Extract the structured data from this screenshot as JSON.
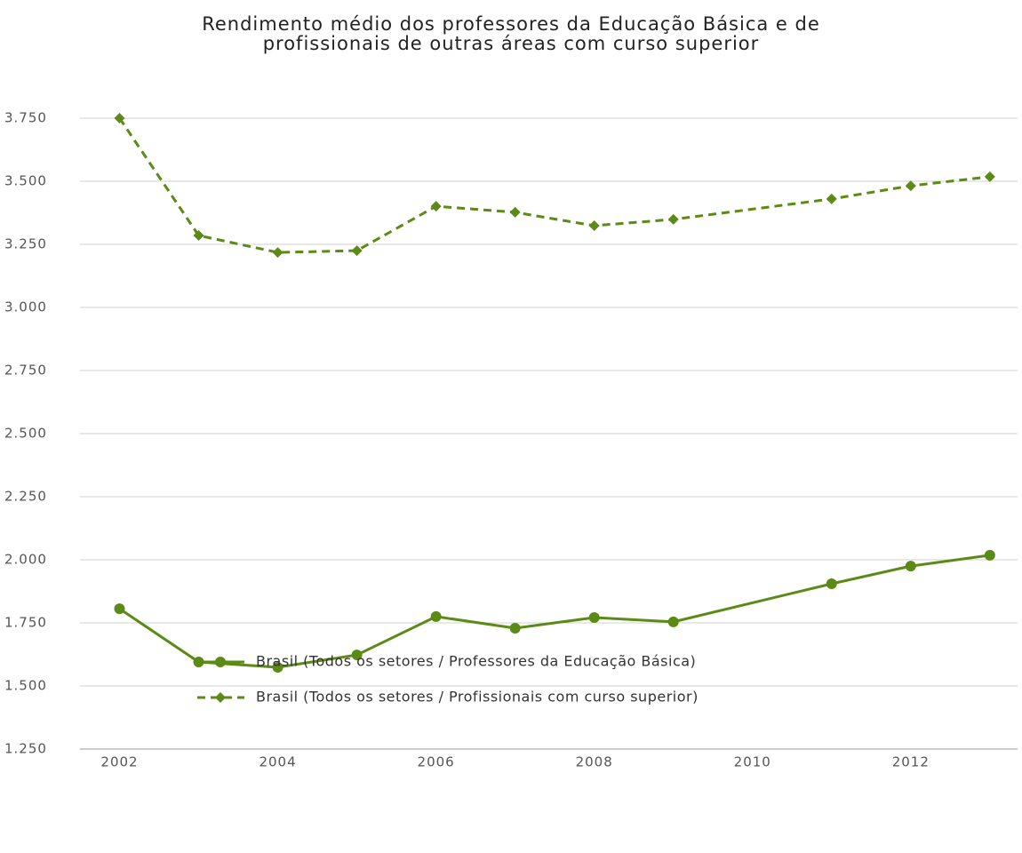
{
  "chart_data": {
    "type": "line",
    "title": [
      "Rendimento médio dos professores da Educação Básica e de",
      "profissionais de outras áreas com curso superior"
    ],
    "x": [
      2002,
      2003,
      2004,
      2005,
      2006,
      2007,
      2008,
      2009,
      2011,
      2012,
      2013
    ],
    "series": [
      {
        "name": "Brasil (Todos os setores / Professores da Educação Básica)",
        "color": "#5b8a16",
        "dash": false,
        "marker": "circle",
        "values": [
          1806,
          1595,
          1574,
          1623,
          1775,
          1729,
          1771,
          1754,
          1905,
          1975,
          2018
        ]
      },
      {
        "name": "Brasil (Todos os setores / Profissionais com curso superior)",
        "color": "#5b8a16",
        "dash": true,
        "marker": "diamond",
        "values": [
          3750,
          3285,
          3218,
          3225,
          3401,
          3377,
          3324,
          3349,
          3430,
          3482,
          3518
        ]
      }
    ],
    "xlim": [
      2001.5,
      2013.35
    ],
    "xticks": [
      2002,
      2004,
      2006,
      2008,
      2010,
      2012
    ],
    "ylim": [
      1250,
      3750
    ],
    "yticks": [
      {
        "value": 1250,
        "label": "1.250"
      },
      {
        "value": 1500,
        "label": "1.500"
      },
      {
        "value": 1750,
        "label": "1.750"
      },
      {
        "value": 2000,
        "label": "2.000"
      },
      {
        "value": 2250,
        "label": "2.250"
      },
      {
        "value": 2500,
        "label": "2.500"
      },
      {
        "value": 2750,
        "label": "2.750"
      },
      {
        "value": 3000,
        "label": "3.000"
      },
      {
        "value": 3250,
        "label": "3.250"
      },
      {
        "value": 3500,
        "label": "3.500"
      },
      {
        "value": 3750,
        "label": "3.750"
      }
    ],
    "grid": true,
    "legend": "bottom"
  }
}
